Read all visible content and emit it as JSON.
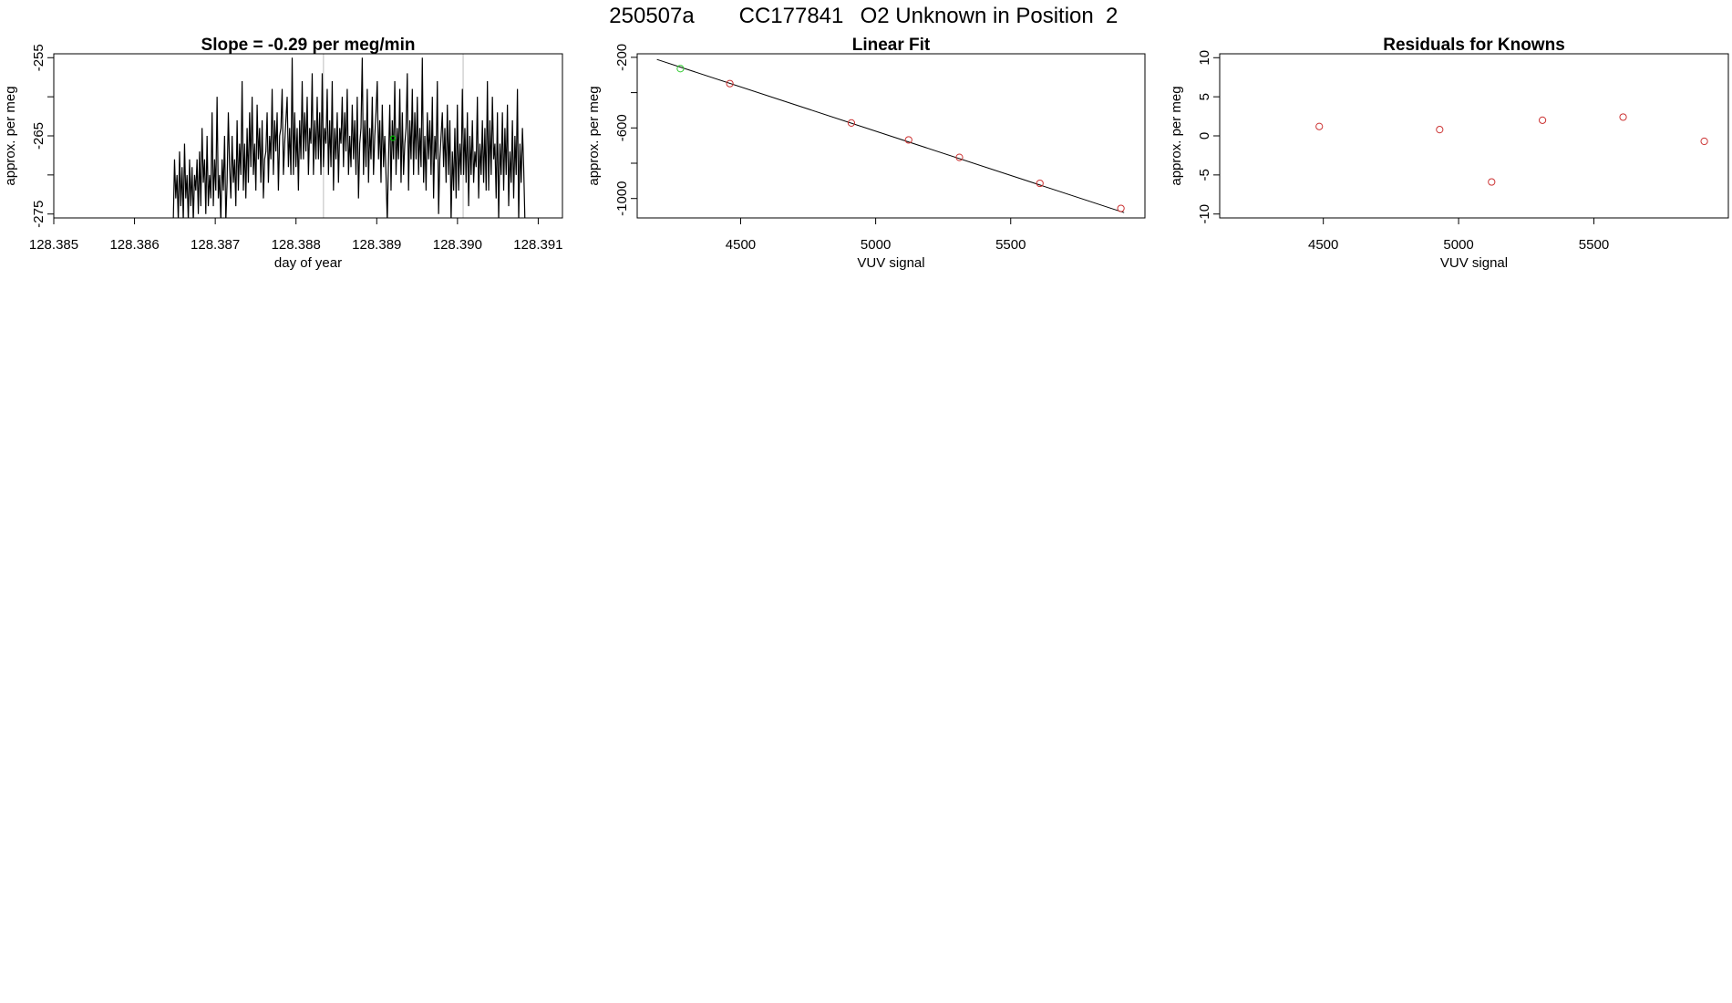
{
  "suptitle": {
    "run_id": "250507a",
    "cylinder": "CC177841",
    "description": "O2 Unknown in Position  2"
  },
  "chart_data": [
    {
      "type": "line",
      "title": "Slope =  -0.29  per meg/min",
      "xlabel": "day of year",
      "ylabel": "approx. per meg",
      "xlim": [
        128.385,
        128.3913
      ],
      "ylim": [
        -275.5,
        -254.5
      ],
      "x_ticks": [
        128.385,
        128.386,
        128.387,
        128.388,
        128.389,
        128.39,
        128.391
      ],
      "x_tick_labels": [
        "128.385",
        "128.386",
        "128.387",
        "128.388",
        "128.389",
        "128.390",
        "128.391"
      ],
      "y_ticks": [
        -255,
        -265,
        -275
      ],
      "y_tick_labels": [
        "-255",
        "-265",
        "-275"
      ],
      "y_minor_ticks": [
        -260,
        -270
      ],
      "grid": false,
      "vlines": {
        "x": [
          128.38834,
          128.39007
        ],
        "color": "#c8c8c8"
      },
      "series": [
        {
          "color": "#000000",
          "x0": 128.38648,
          "dx": 1.55e-05,
          "y": [
            -276,
            -268,
            -273,
            -270,
            -276,
            -267,
            -274,
            -269,
            -276,
            -266,
            -273,
            -270,
            -276,
            -268,
            -274,
            -269,
            -276,
            -270,
            -272,
            -268,
            -275,
            -267,
            -274,
            -264,
            -271,
            -268,
            -275,
            -265,
            -274,
            -270,
            -273,
            -262,
            -274,
            -268,
            -272,
            -260,
            -273,
            -270,
            -276,
            -268,
            -272,
            -265,
            -276,
            -271,
            -262,
            -269,
            -273,
            -265,
            -271,
            -268,
            -274,
            -263,
            -272,
            -266,
            -270,
            -258,
            -272,
            -266,
            -273,
            -264,
            -271,
            -262,
            -269,
            -260,
            -270,
            -266,
            -272,
            -261,
            -268,
            -264,
            -271,
            -263,
            -273,
            -268,
            -267,
            -262,
            -271,
            -265,
            -268,
            -259,
            -270,
            -263,
            -267,
            -262,
            -272,
            -265,
            -264,
            -259,
            -270,
            -266,
            -263,
            -260,
            -269,
            -264,
            -270,
            -255,
            -270,
            -262,
            -269,
            -264,
            -272,
            -263,
            -268,
            -258,
            -268,
            -262,
            -267,
            -260,
            -270,
            -264,
            -266,
            -257,
            -270,
            -263,
            -268,
            -260,
            -268,
            -262,
            -270,
            -257,
            -269,
            -264,
            -266,
            -259,
            -270,
            -263,
            -269,
            -258,
            -272,
            -264,
            -268,
            -262,
            -271,
            -264,
            -266,
            -260,
            -269,
            -262,
            -267,
            -259,
            -270,
            -265,
            -269,
            -261,
            -268,
            -263,
            -270,
            -260,
            -273,
            -266,
            -264,
            -255,
            -270,
            -263,
            -269,
            -259,
            -271,
            -264,
            -268,
            -260,
            -270,
            -265,
            -262,
            -258,
            -268,
            -263,
            -271,
            -261,
            -269,
            -265,
            -270,
            -276,
            -268,
            -261,
            -272,
            -263,
            -268,
            -258,
            -270,
            -264,
            -268,
            -259,
            -271,
            -262,
            -270,
            -266,
            -264,
            -257,
            -272,
            -263,
            -268,
            -259,
            -270,
            -262,
            -268,
            -260,
            -270,
            -264,
            -269,
            -255,
            -271,
            -265,
            -272,
            -262,
            -268,
            -263,
            -270,
            -260,
            -273,
            -265,
            -268,
            -258,
            -275,
            -268,
            -265,
            -262,
            -269,
            -264,
            -271,
            -261,
            -270,
            -263,
            -276,
            -267,
            -272,
            -264,
            -273,
            -261,
            -272,
            -266,
            -270,
            -259,
            -270,
            -264,
            -271,
            -262,
            -274,
            -265,
            -270,
            -263,
            -271,
            -267,
            -269,
            -260,
            -273,
            -266,
            -270,
            -263,
            -271,
            -264,
            -272,
            -258,
            -272,
            -263,
            -270,
            -260,
            -268,
            -266,
            -273,
            -262,
            -276,
            -266,
            -270,
            -262,
            -272,
            -264,
            -270,
            -261,
            -274,
            -267,
            -271,
            -263,
            -273,
            -265,
            -270,
            -259,
            -276,
            -266,
            -271,
            -264,
            -269,
            -276
          ]
        }
      ],
      "highlight_point": {
        "x": 128.3892,
        "y": -265.3,
        "color": "#00cc00"
      }
    },
    {
      "type": "scatter",
      "title": "Linear Fit",
      "xlabel": "VUV signal",
      "ylabel": "approx. per meg",
      "xlim": [
        4117,
        5997
      ],
      "ylim": [
        -1110,
        -180
      ],
      "x_ticks": [
        4500,
        5000,
        5500
      ],
      "x_tick_labels": [
        "4500",
        "5000",
        "5500"
      ],
      "y_ticks": [
        -200,
        -600,
        -1000
      ],
      "y_tick_labels": [
        "-200",
        "-600",
        "-1000"
      ],
      "y_minor_ticks": [
        -400,
        -800
      ],
      "grid": false,
      "fit_line": {
        "x": [
          4190,
          5920
        ],
        "y": [
          -212,
          -1080
        ],
        "color": "#000000"
      },
      "series": [
        {
          "color": "#cc3333",
          "x": [
            4460,
            4910,
            5122,
            5310,
            5608,
            5908
          ],
          "y": [
            -349,
            -572,
            -668,
            -767,
            -914,
            -1056
          ]
        },
        {
          "color": "#33cc33",
          "x": [
            4277
          ],
          "y": [
            -264
          ]
        }
      ]
    },
    {
      "type": "scatter",
      "title": "Residuals for Knowns",
      "xlabel": "VUV signal",
      "ylabel": "approx. per meg",
      "xlim": [
        4117,
        5997
      ],
      "ylim": [
        -10.5,
        10.5
      ],
      "x_ticks": [
        4500,
        5000,
        5500
      ],
      "x_tick_labels": [
        "4500",
        "5000",
        "5500"
      ],
      "y_ticks": [
        10,
        5,
        0,
        -5,
        -10
      ],
      "y_tick_labels": [
        "10",
        "5",
        "0",
        "-5",
        "-10"
      ],
      "grid": false,
      "series": [
        {
          "color": "#cc3333",
          "x": [
            4485,
            4930,
            5122,
            5310,
            5608,
            5908
          ],
          "y": [
            1.2,
            0.8,
            -5.9,
            2.0,
            2.4,
            -0.7
          ]
        }
      ]
    }
  ]
}
